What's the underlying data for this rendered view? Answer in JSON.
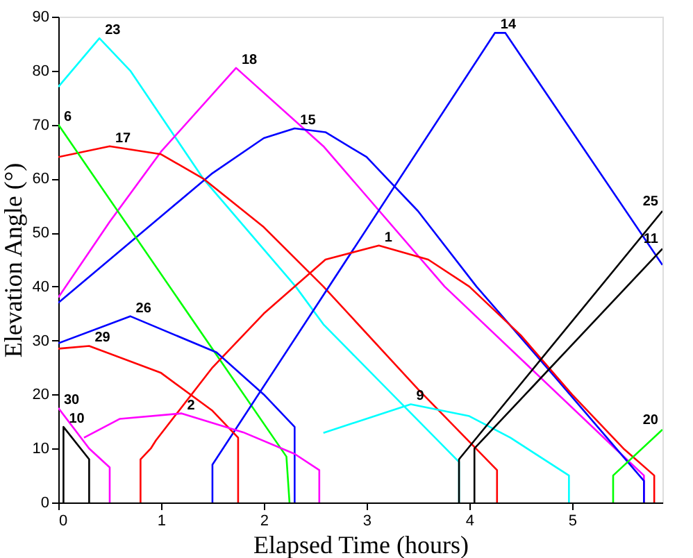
{
  "chart_data": {
    "type": "line",
    "xlabel": "Elapsed Time (hours)",
    "ylabel": "Elevation Angle (°)",
    "xlim": [
      0,
      5.88
    ],
    "ylim": [
      0,
      90
    ],
    "xticks": [
      0,
      1,
      2,
      3,
      4,
      5
    ],
    "yticks": [
      0,
      10,
      20,
      30,
      40,
      50,
      60,
      70,
      80,
      90
    ],
    "grid": false,
    "legend": false,
    "marker": "none",
    "line_style": "solid",
    "series": [
      {
        "name": "23",
        "color": "#00ffff",
        "x": [
          0,
          0.4,
          0.7,
          1.41,
          2.31,
          2.58,
          3.9,
          3.9
        ],
        "values": [
          77,
          86,
          80,
          60,
          40,
          33,
          7.5,
          0
        ]
      },
      {
        "name": "18",
        "color": "#ff00ff",
        "x": [
          0,
          0.5,
          1,
          1.73,
          2.58,
          3.76,
          5.42,
          5.7,
          5.7
        ],
        "values": [
          38,
          52,
          65,
          80.5,
          66,
          40,
          10,
          5,
          0
        ]
      },
      {
        "name": "15",
        "color": "#0000ff",
        "x": [
          0,
          0.5,
          1,
          1.5,
          2,
          2.3,
          2.6,
          3,
          3.5,
          4.07,
          4.8,
          5.7,
          5.7
        ],
        "values": [
          37,
          45,
          53,
          61,
          67.5,
          69.3,
          68.6,
          64,
          54,
          40,
          24,
          4,
          0
        ]
      },
      {
        "name": "17",
        "color": "#ff0000",
        "x": [
          0,
          0.5,
          1,
          1.41,
          2,
          2.58,
          3.5,
          4.27,
          4.27
        ],
        "values": [
          64,
          66,
          64.5,
          60,
          51,
          40,
          21,
          6,
          0
        ]
      },
      {
        "name": "6",
        "color": "#00ff00",
        "x": [
          0,
          2.22,
          2.25
        ],
        "values": [
          70,
          8.5,
          0
        ]
      },
      {
        "name": "14",
        "color": "#0000ff",
        "x": [
          1.5,
          1.5,
          4.25,
          4.35,
          5.88
        ],
        "values": [
          0,
          7,
          87,
          87,
          44
        ]
      },
      {
        "name": "1",
        "color": "#ff0000",
        "x": [
          0.8,
          0.8,
          0.9,
          0.95,
          1.5,
          2,
          2.6,
          3.12,
          3.6,
          4,
          4.5,
          5,
          5.5,
          5.8,
          5.8
        ],
        "values": [
          0,
          8,
          10,
          11.5,
          25,
          35,
          45,
          47.6,
          45,
          40,
          31,
          20,
          10,
          5,
          0
        ]
      },
      {
        "name": "26",
        "color": "#0000ff",
        "x": [
          0,
          0.7,
          1.54,
          2,
          2.3,
          2.3
        ],
        "values": [
          29.5,
          34.5,
          27.8,
          20,
          14,
          0
        ]
      },
      {
        "name": "29",
        "color": "#ff0000",
        "x": [
          0,
          0.3,
          1,
          1.5,
          1.75,
          1.75
        ],
        "values": [
          28.5,
          29,
          24,
          17,
          12,
          0
        ]
      },
      {
        "name": "2",
        "color": "#ff00ff",
        "x": [
          0.25,
          0.6,
          1.2,
          1.8,
          2.3,
          2.54,
          2.54
        ],
        "values": [
          12,
          15.5,
          16.5,
          13,
          9,
          6,
          0
        ]
      },
      {
        "name": "30",
        "color": "#ff00ff",
        "x": [
          0,
          0.3,
          0.5,
          0.5
        ],
        "values": [
          17.5,
          10,
          6.5,
          0
        ]
      },
      {
        "name": "10",
        "color": "#000000",
        "x": [
          0.05,
          0.05,
          0.3,
          0.3
        ],
        "values": [
          0,
          14,
          8,
          0
        ]
      },
      {
        "name": "9",
        "color": "#00ffff",
        "x": [
          2.58,
          3.43,
          4,
          4.4,
          4.97,
          4.97
        ],
        "values": [
          12.9,
          18.2,
          16,
          12,
          5,
          0
        ]
      },
      {
        "name": "25",
        "color": "#000000",
        "x": [
          3.9,
          3.9,
          5.88
        ],
        "values": [
          0,
          8,
          54
        ]
      },
      {
        "name": "11",
        "color": "#000000",
        "x": [
          4.05,
          4.05,
          5.88
        ],
        "values": [
          0,
          10,
          47
        ]
      },
      {
        "name": "20",
        "color": "#00ff00",
        "x": [
          5.4,
          5.4,
          5.88
        ],
        "values": [
          0,
          5,
          13.5
        ]
      }
    ]
  }
}
